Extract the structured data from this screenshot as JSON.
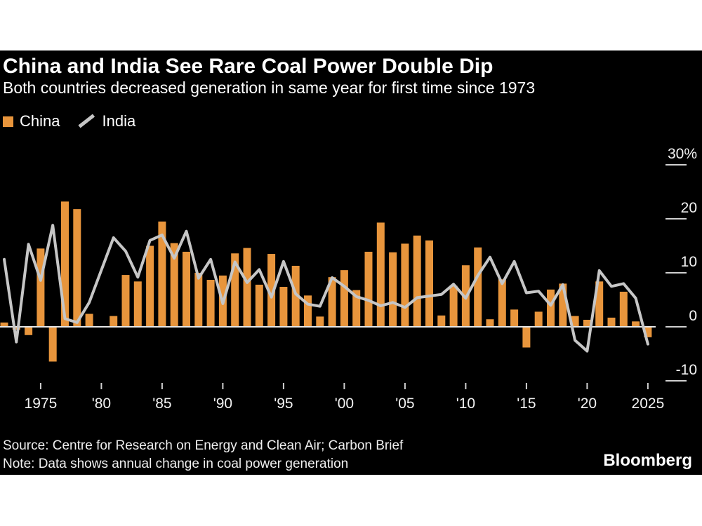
{
  "card": {
    "title": "China and India See Rare Coal Power Double Dip",
    "subtitle": "Both countries decreased generation in same year for first time since 1973",
    "source_line": "Source: Centre for Research on Energy and Clean Air; Carbon Brief",
    "note_line": "Note: Data shows annual change in coal power generation",
    "brand": "Bloomberg"
  },
  "legend": {
    "china_label": "China",
    "india_label": "India"
  },
  "colors": {
    "page_background": "#ffffff",
    "card_background": "#000000",
    "china_bar": "#e8953c",
    "india_line": "#c6c6c6",
    "axis_line": "#e6e6e6",
    "tick": "#d0d0d0",
    "text": "#ffffff"
  },
  "chart_data": {
    "type": "bar+line",
    "title": "China and India See Rare Coal Power Double Dip",
    "subtitle": "Both countries decreased generation in same year for first time since 1973",
    "xlabel": "",
    "ylabel": "annual change in coal power generation, %",
    "grid": false,
    "legend_position": "top-left",
    "ylim": [
      -12,
      32
    ],
    "categories": [
      1972,
      1973,
      1974,
      1975,
      1976,
      1977,
      1978,
      1979,
      1980,
      1981,
      1982,
      1983,
      1984,
      1985,
      1986,
      1987,
      1988,
      1989,
      1990,
      1991,
      1992,
      1993,
      1994,
      1995,
      1996,
      1997,
      1998,
      1999,
      2000,
      2001,
      2002,
      2003,
      2004,
      2005,
      2006,
      2007,
      2008,
      2009,
      2010,
      2011,
      2012,
      2013,
      2014,
      2015,
      2016,
      2017,
      2018,
      2019,
      2020,
      2021,
      2022,
      2023,
      2024,
      2025
    ],
    "series": [
      {
        "name": "China",
        "type": "bar",
        "color": "#e8953c",
        "values": [
          0.8,
          -0.4,
          -1.4,
          14.5,
          -6.3,
          23.2,
          21.8,
          2.4,
          0,
          2.0,
          9.6,
          8.4,
          15.0,
          19.5,
          15.5,
          13.9,
          10.0,
          8.7,
          9.5,
          13.6,
          14.6,
          7.8,
          13.5,
          7.4,
          11.3,
          5.8,
          1.9,
          9.2,
          10.5,
          6.8,
          13.9,
          19.3,
          13.8,
          15.4,
          16.9,
          16.0,
          2.1,
          7.6,
          11.4,
          14.7,
          1.4,
          8.8,
          3.2,
          -3.7,
          2.8,
          6.9,
          8.0,
          2.0,
          1.3,
          8.4,
          1.7,
          6.5,
          1.0,
          -1.8
        ]
      },
      {
        "name": "India",
        "type": "line",
        "color": "#c6c6c6",
        "values": [
          12.5,
          -2.8,
          15.3,
          8.6,
          18.8,
          1.5,
          0.8,
          4.5,
          10.5,
          16.5,
          14.0,
          9.2,
          16.0,
          17.0,
          12.7,
          17.7,
          9.0,
          12.5,
          4.3,
          12.0,
          8.2,
          10.6,
          5.5,
          12.1,
          6.1,
          4.2,
          3.8,
          9.1,
          7.5,
          5.6,
          4.9,
          3.9,
          4.5,
          3.6,
          5.4,
          5.7,
          6.0,
          7.9,
          5.3,
          9.5,
          12.9,
          8.0,
          12.1,
          6.3,
          6.6,
          4.0,
          7.8,
          -2.5,
          -4.5,
          10.4,
          7.5,
          8.0,
          5.3,
          -3.2
        ]
      }
    ],
    "y_ticks": [
      {
        "value": 30,
        "label": "30%"
      },
      {
        "value": 20,
        "label": "20"
      },
      {
        "value": 10,
        "label": "10"
      },
      {
        "value": 0,
        "label": "0"
      },
      {
        "value": -10,
        "label": "-10"
      }
    ],
    "x_ticks": [
      {
        "year": 1975,
        "label": "1975"
      },
      {
        "year": 1980,
        "label": "'80"
      },
      {
        "year": 1985,
        "label": "'85"
      },
      {
        "year": 1990,
        "label": "'90"
      },
      {
        "year": 1995,
        "label": "'95"
      },
      {
        "year": 2000,
        "label": "'00"
      },
      {
        "year": 2005,
        "label": "'05"
      },
      {
        "year": 2010,
        "label": "'10"
      },
      {
        "year": 2015,
        "label": "'15"
      },
      {
        "year": 2020,
        "label": "'20"
      },
      {
        "year": 2025,
        "label": "2025"
      }
    ]
  }
}
